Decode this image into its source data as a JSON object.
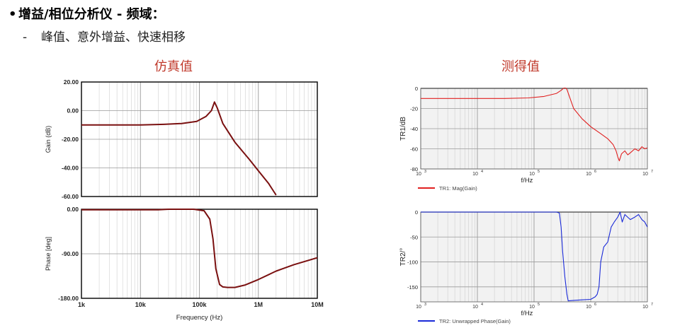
{
  "heading": {
    "bullet": "•",
    "title": "增益/相位分析仪 - 频域：",
    "dash": "-",
    "subtitle": "峰值、意外增益、快速相移"
  },
  "captions": {
    "sim": "仿真值",
    "meas": "测得值"
  },
  "colors": {
    "sim": "#7a1010",
    "meas_mag": "#e02020",
    "meas_phase": "#1a2ad8",
    "caption": "#c0392b"
  },
  "chart_data": [
    {
      "id": "sim-gain",
      "type": "line",
      "xscale": "log",
      "xlim": [
        1000,
        10000000
      ],
      "ylim": [
        -60,
        20
      ],
      "ylabel": "Gain (dB)",
      "yticks": [
        "20.00",
        "0.00",
        "-20.00",
        "-40.00",
        "-60.00"
      ],
      "grid": true,
      "series": [
        {
          "x": [
            1000,
            10000,
            25000,
            50000,
            90000,
            130000,
            160000,
            180000,
            200000,
            250000,
            400000,
            700000,
            1000000,
            1500000,
            2000000
          ],
          "y": [
            -10,
            -10,
            -9.6,
            -9,
            -7.5,
            -4,
            0,
            6,
            2,
            -9,
            -22,
            -34,
            -42,
            -51,
            -59
          ]
        }
      ]
    },
    {
      "id": "sim-phase",
      "type": "line",
      "xscale": "log",
      "xlim": [
        1000,
        10000000
      ],
      "ylim": [
        -180,
        0
      ],
      "ylabel": "Phase [deg]",
      "xlabel": "Frequency (Hz)",
      "yticks": [
        "0.00",
        "-90.00",
        "-180.00"
      ],
      "xticks": [
        "1k",
        "10k",
        "100k",
        "1M",
        "10M"
      ],
      "grid": true,
      "series": [
        {
          "x": [
            1000,
            10000,
            20000,
            30000,
            80000,
            120000,
            150000,
            170000,
            190000,
            220000,
            250000,
            300000,
            400000,
            600000,
            1000000,
            2000000,
            4000000,
            10000000
          ],
          "y": [
            -1,
            -1,
            -1,
            0,
            0,
            -3,
            -20,
            -60,
            -120,
            -152,
            -157,
            -158,
            -158,
            -153,
            -142,
            -125,
            -112,
            -98
          ]
        }
      ]
    },
    {
      "id": "meas-gain",
      "type": "line",
      "xscale": "log",
      "xlim": [
        1000,
        10000000
      ],
      "ylim": [
        -80,
        0
      ],
      "ylabel": "TR1/dB",
      "xlabel": "f/Hz",
      "yticks": [
        "0",
        "-20",
        "-40",
        "-60",
        "-80"
      ],
      "xticks_exp": [
        "3",
        "4",
        "5",
        "6",
        "7"
      ],
      "grid": true,
      "legend": "TR1: Mag(Gain)",
      "series": [
        {
          "x": [
            1000,
            10000,
            30000,
            80000,
            150000,
            250000,
            300000,
            330000,
            350000,
            380000,
            420000,
            500000,
            700000,
            1000000,
            1500000,
            2000000,
            2500000,
            2800000,
            3000000,
            3200000,
            3500000,
            4000000,
            4500000,
            5000000,
            6000000,
            7000000,
            8000000,
            9000000,
            10000000
          ],
          "y": [
            -10,
            -10,
            -10,
            -9.5,
            -8,
            -5,
            -2,
            0,
            1,
            -1,
            -8,
            -20,
            -30,
            -38,
            -45,
            -50,
            -56,
            -62,
            -68,
            -72,
            -65,
            -62,
            -66,
            -64,
            -60,
            -62,
            -58,
            -60,
            -59
          ]
        }
      ]
    },
    {
      "id": "meas-phase",
      "type": "line",
      "xscale": "log",
      "xlim": [
        1000,
        10000000
      ],
      "ylim": [
        -180,
        0
      ],
      "ylabel": "TR2/°",
      "xlabel": "f/Hz",
      "yticks": [
        "0",
        "-50",
        "-100",
        "-150"
      ],
      "xticks_exp": [
        "3",
        "4",
        "5",
        "6",
        "7"
      ],
      "grid": true,
      "legend": "TR2: Unwrapped Phase(Gain)",
      "series": [
        {
          "x": [
            1000,
            10000,
            100000,
            250000,
            280000,
            300000,
            320000,
            350000,
            380000,
            400000,
            500000,
            700000,
            1000000,
            1200000,
            1300000,
            1400000,
            1500000,
            1700000,
            2000000,
            2300000,
            2600000,
            3000000,
            3300000,
            3600000,
            4000000,
            5000000,
            6000000,
            7000000,
            8000000,
            9000000,
            10000000
          ],
          "y": [
            0,
            0,
            0,
            0,
            -2,
            -30,
            -80,
            -130,
            -165,
            -178,
            -177,
            -176,
            -175,
            -170,
            -165,
            -150,
            -100,
            -70,
            -60,
            -30,
            -20,
            -10,
            0,
            -20,
            -5,
            -15,
            -10,
            -5,
            -15,
            -20,
            -30
          ]
        }
      ]
    }
  ]
}
